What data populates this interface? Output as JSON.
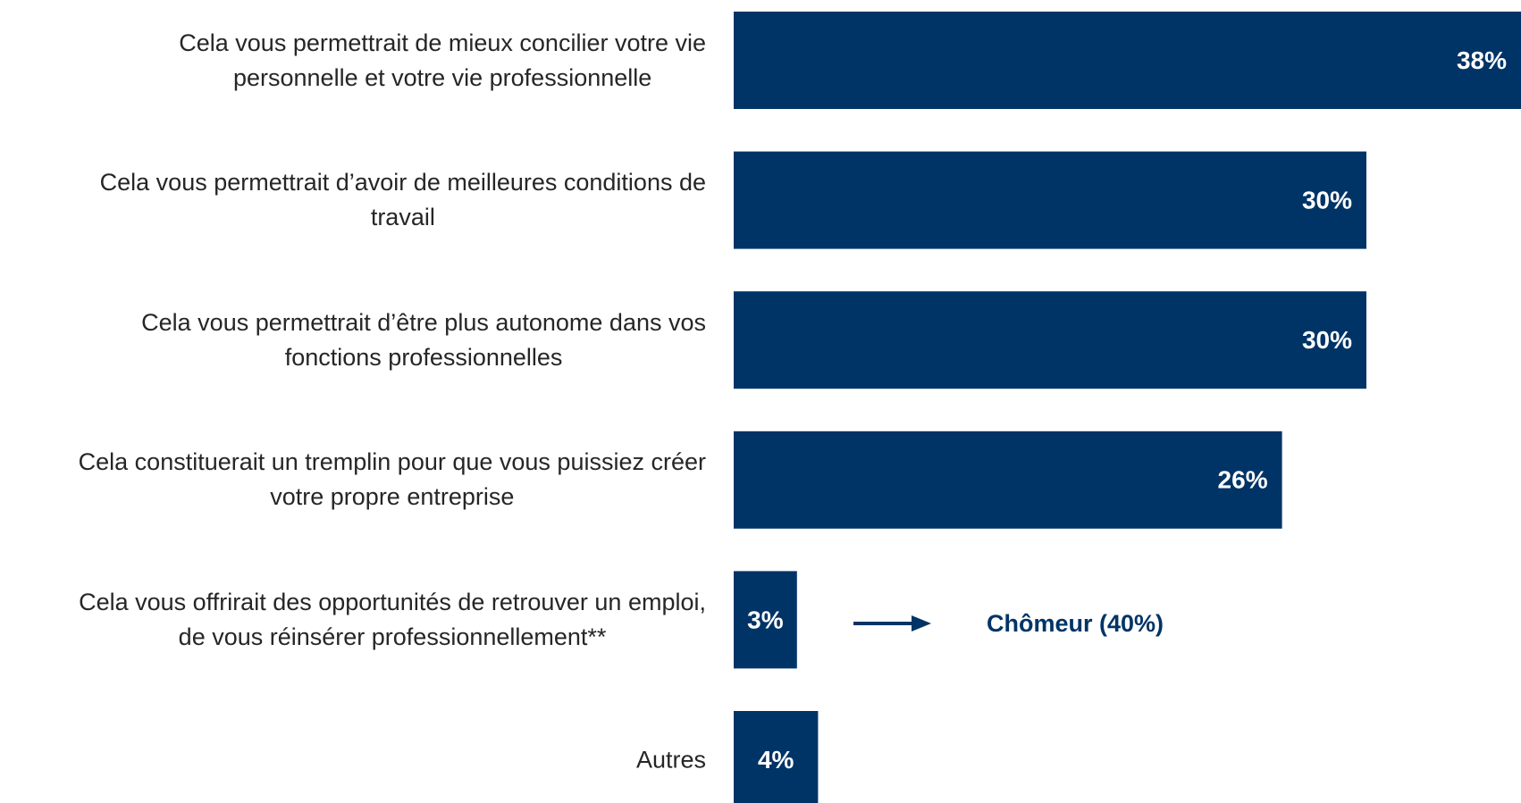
{
  "chart_data": {
    "type": "bar",
    "orientation": "horizontal",
    "categories": [
      "Cela vous permettrait de mieux concilier votre vie\npersonnelle et votre vie professionnelle",
      "Cela vous permettrait d’avoir de meilleures conditions de\ntravail",
      "Cela vous permettrait d’être plus autonome dans vos\nfonctions professionnelles",
      "Cela constituerait un tremplin pour que vous puissiez créer\nvotre propre entreprise",
      "Cela vous offrirait des opportunités de retrouver un emploi,\nde vous réinsérer professionnellement**",
      "Autres"
    ],
    "values": [
      38,
      30,
      30,
      26,
      3,
      4
    ],
    "value_labels": [
      "38%",
      "30%",
      "30%",
      "26%",
      "3%",
      "4%"
    ],
    "color": "#003466",
    "annotation": "Chômeur (40%)"
  }
}
